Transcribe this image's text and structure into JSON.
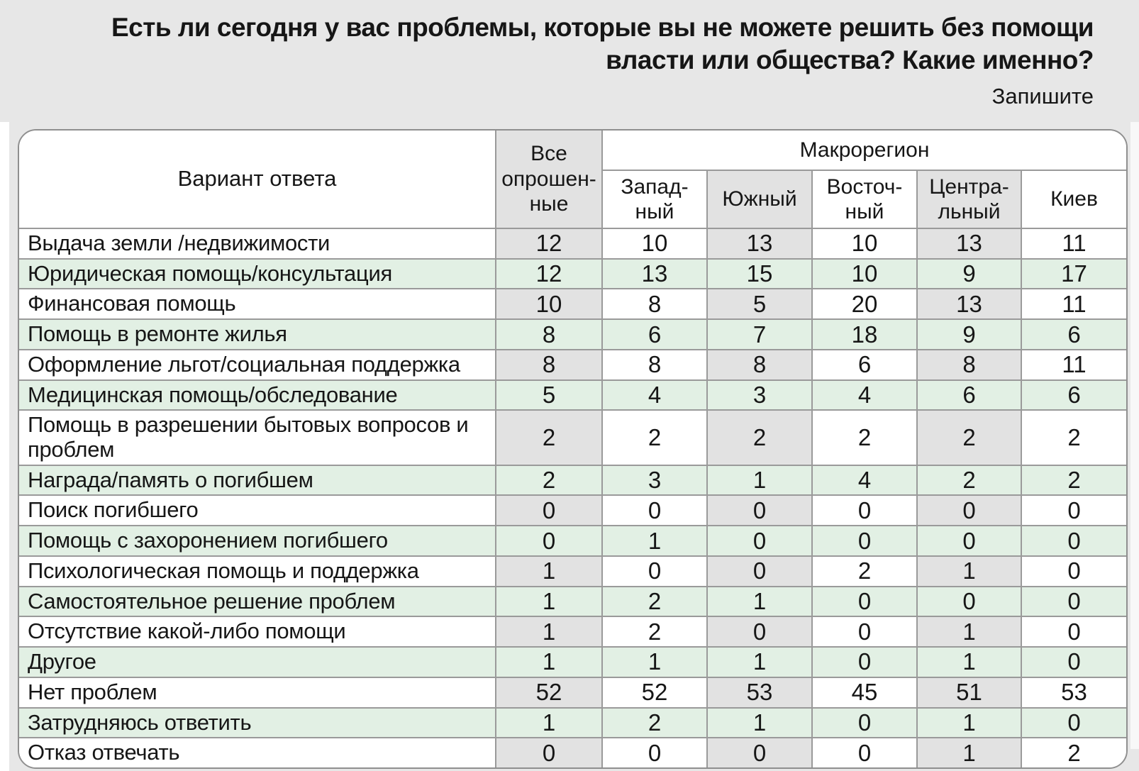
{
  "title": {
    "line1": "Есть ли сегодня у вас проблемы, которые вы не можете решить без помощи",
    "line2": "власти или общества? Какие именно?",
    "subtitle": "Запишите"
  },
  "colors": {
    "page_background": "#e7e7e7",
    "row_green": "#e2f0e4",
    "column_stripe_gray": "#e2e2e2",
    "table_border": "#9a9a9a",
    "text": "#161616"
  },
  "table": {
    "row_header_label": "Вариант ответа",
    "all_column_label": "Все\nопрошен-\nные",
    "group_label": "Макрорегион",
    "region_columns": [
      {
        "label": "Запад-\nный",
        "shaded": false
      },
      {
        "label": "Южный",
        "shaded": true
      },
      {
        "label": "Восточ-\nный",
        "shaded": false
      },
      {
        "label": "Центра-\nльный",
        "shaded": true
      },
      {
        "label": "Киев",
        "shaded": false
      }
    ]
  },
  "chart_data": {
    "type": "table",
    "title": "Есть ли сегодня у вас проблемы, которые вы не можете решить без помощи власти или общества? Какие именно? Запишите",
    "row_header": "Вариант ответа",
    "column_group": "Макрорегион",
    "columns": [
      "Все опрошенные",
      "Западный",
      "Южный",
      "Восточный",
      "Центральный",
      "Киев"
    ],
    "rows": [
      {
        "label": "Выдача земли /недвижимости",
        "values": [
          12,
          10,
          13,
          10,
          13,
          11
        ]
      },
      {
        "label": "Юридическая помощь/консультация",
        "values": [
          12,
          13,
          15,
          10,
          9,
          17
        ]
      },
      {
        "label": "Финансовая помощь",
        "values": [
          10,
          8,
          5,
          20,
          13,
          11
        ]
      },
      {
        "label": "Помощь в ремонте жилья",
        "values": [
          8,
          6,
          7,
          18,
          9,
          6
        ]
      },
      {
        "label": "Оформление льгот/социальная поддержка",
        "values": [
          8,
          8,
          8,
          6,
          8,
          11
        ]
      },
      {
        "label": "Медицинская помощь/обследование",
        "values": [
          5,
          4,
          3,
          4,
          6,
          6
        ]
      },
      {
        "label": "Помощь в разрешении бытовых вопросов и проблем",
        "values": [
          2,
          2,
          2,
          2,
          2,
          2
        ]
      },
      {
        "label": "Награда/память о погибшем",
        "values": [
          2,
          3,
          1,
          4,
          2,
          2
        ]
      },
      {
        "label": "Поиск погибшего",
        "values": [
          0,
          0,
          0,
          0,
          0,
          0
        ]
      },
      {
        "label": "Помощь с захоронением погибшего",
        "values": [
          0,
          1,
          0,
          0,
          0,
          0
        ]
      },
      {
        "label": "Психологическая помощь и поддержка",
        "values": [
          1,
          0,
          0,
          2,
          1,
          0
        ]
      },
      {
        "label": "Самостоятельное решение проблем",
        "values": [
          1,
          2,
          1,
          0,
          0,
          0
        ]
      },
      {
        "label": "Отсутствие какой-либо помощи",
        "values": [
          1,
          2,
          0,
          0,
          1,
          0
        ]
      },
      {
        "label": "Другое",
        "values": [
          1,
          1,
          1,
          0,
          1,
          0
        ]
      },
      {
        "label": "Нет проблем",
        "values": [
          52,
          52,
          53,
          45,
          51,
          53
        ]
      },
      {
        "label": "Затрудняюсь ответить",
        "values": [
          1,
          2,
          1,
          0,
          1,
          0
        ]
      },
      {
        "label": "Отказ отвечать",
        "values": [
          0,
          0,
          0,
          0,
          1,
          2
        ]
      }
    ]
  }
}
